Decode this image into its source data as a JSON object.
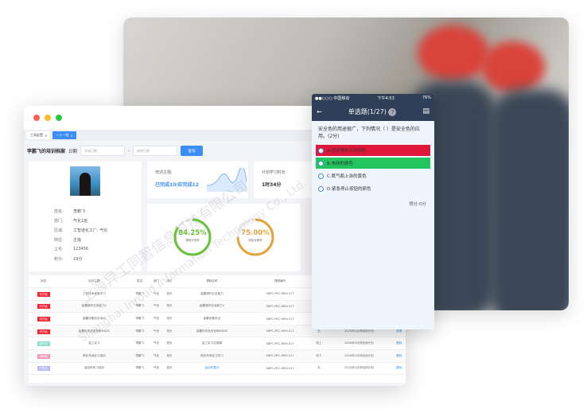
{
  "window": {
    "tabs": [
      "工具配置",
      "一人一档"
    ]
  },
  "toolbar": {
    "title": "李鹏飞的培训档案",
    "date_label": "日期",
    "start_placeholder": "开始日期",
    "end_placeholder": "结束日期",
    "separator": "-",
    "search_button": "查询"
  },
  "profile": {
    "fields": [
      {
        "label": "姓名:",
        "value": "李鹏飞"
      },
      {
        "label": "部门:",
        "value": "气化1班"
      },
      {
        "label": "区域:",
        "value": "工智道化工厂: 气化"
      },
      {
        "label": "岗位:",
        "value": "主操"
      },
      {
        "label": "工号:",
        "value": "123456"
      },
      {
        "label": "积分:",
        "value": "19分"
      }
    ]
  },
  "training": {
    "label": "培训主题:",
    "value": "已完成10/应完成12"
  },
  "plan": {
    "label": "计划学习时长",
    "value": "1时34分"
  },
  "stats": [
    {
      "value": "84.25%",
      "label": "课程完成率",
      "fraction": 0.8425,
      "color": "#67c23a"
    },
    {
      "value": "75.00%",
      "label": "测验合格率",
      "fraction": 0.75,
      "color": "#e6a23c"
    }
  ],
  "table": {
    "headers": [
      "状态",
      "培训主题",
      "姓名",
      "部门",
      "岗位",
      "课程名称",
      "课程编号",
      "方式",
      "计划",
      "状态"
    ],
    "rows": [
      {
        "status": "未开始",
        "color": "#f5222d",
        "cells": [
          "工作技术使用学习",
          "李鹏飞",
          "气化",
          "班长",
          "装置操作业务能力",
          "SBPC-PEC-MEH-017",
          "无",
          "2020年1月份培训计划",
          "查看"
        ]
      },
      {
        "status": "未开始",
        "color": "#f5222d",
        "cells": [
          "装置操作业务能力2",
          "李鹏飞",
          "气化",
          "班长",
          "装置操作业务能力2",
          "SBPC-PEC-MEH-017",
          "无",
          "2020年1月份培训计划",
          "查看"
        ]
      },
      {
        "status": "未开始",
        "color": "#f5222d",
        "cells": [
          "装置设备安全培训",
          "李鹏飞",
          "气化",
          "班长",
          "装置设备安全",
          "SBPC-PEC-MEH-017",
          "无",
          "2020年1月份培训计划",
          "查看"
        ]
      },
      {
        "status": "未开始",
        "color": "#f5222d",
        "cells": [
          "装置化学品安全和MSDS",
          "李鹏飞",
          "气化",
          "班长",
          "装置化学品安全和MSDS",
          "SBPC-PEC-MEH-017",
          "无",
          "2020年1月份培训计划",
          "查看"
        ]
      },
      {
        "status": "进行中",
        "color": "#8de0cf",
        "cells": [
          "金工实习",
          "李鹏飞",
          "气化",
          "班长",
          "金工实习实操课",
          "SBPC-PEC-MEH-017",
          "线上",
          "2020年1月份培训计划",
          "删除"
        ]
      },
      {
        "status": "待审核",
        "color": "#f59ab9",
        "cells": [
          "炼化车间实习培训",
          "李鹏飞",
          "气化",
          "班长",
          "炼化车间实习学习",
          "SBPC-PEC-MEH-017",
          "线下",
          "2020年1月份培训计划",
          "删除"
        ]
      },
      {
        "status": "已完成",
        "color": "#b8b8f5",
        "cells": [
          "返回车间习培训",
          "李鹏飞",
          "气化",
          "班长",
          "返回车复训",
          "SBPC-PEC-MEH-017",
          "无",
          "2020年1月份培训计划",
          "删除"
        ]
      }
    ]
  },
  "phone": {
    "carrier": "●●○○○ 中国移动",
    "time": "下午4:53",
    "battery": "76%",
    "title": "单选题(1/27)",
    "question": "安全色的用途很广，下列情况（ ）是安全色的应用。(2分)",
    "options": [
      {
        "text": "A.管道等的不同颜色",
        "state": "wrong",
        "color": "#e0163a"
      },
      {
        "text": "B.电线的颜色",
        "state": "correct",
        "color": "#22c55e"
      },
      {
        "text": "C.氮气瓶上涂的黄色",
        "state": "none"
      },
      {
        "text": "D.紧急停止按钮的颜色",
        "state": "none"
      }
    ],
    "score": "得分:0分"
  },
  "watermark": [
    "上海异工同智信息科技有限公司",
    "Shanghai Inroad Information Technology Co., Ltd."
  ]
}
